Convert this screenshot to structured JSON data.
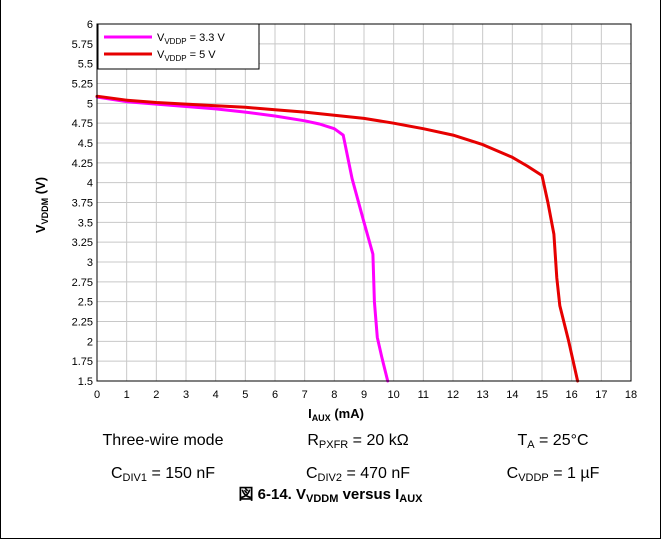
{
  "chart_data": {
    "type": "line",
    "xlabel": {
      "main": "I",
      "sub": "AUX",
      "unit": " (mA)"
    },
    "ylabel": {
      "main": "V",
      "sub": "VDDM",
      "unit": " (V)"
    },
    "xlim": [
      0,
      18
    ],
    "ylim": [
      1.5,
      6
    ],
    "x_ticks": [
      0,
      1,
      2,
      3,
      4,
      5,
      6,
      7,
      8,
      9,
      10,
      11,
      12,
      13,
      14,
      15,
      16,
      17,
      18
    ],
    "y_ticks": [
      "1.5",
      "1.75",
      "2",
      "2.25",
      "2.5",
      "2.75",
      "3",
      "3.25",
      "3.5",
      "3.75",
      "4",
      "4.25",
      "4.5",
      "4.75",
      "5",
      "5.25",
      "5.5",
      "5.75",
      "6"
    ],
    "grid": true,
    "legend_position": "top-left",
    "series": [
      {
        "name_main": "V",
        "name_sub": "VDDP",
        "name_rest": " = 3.3 V",
        "color": "#ff00ff",
        "x": [
          0,
          1,
          2,
          3,
          4,
          5,
          6,
          7,
          7.5,
          8,
          8.3,
          8.6,
          9.0,
          9.3,
          9.35,
          9.45,
          9.6,
          9.8
        ],
        "y": [
          5.08,
          5.02,
          4.99,
          4.96,
          4.93,
          4.89,
          4.84,
          4.78,
          4.74,
          4.68,
          4.6,
          4.05,
          3.5,
          3.1,
          2.5,
          2.05,
          1.8,
          1.5
        ]
      },
      {
        "name_main": "V",
        "name_sub": "VDDP",
        "name_rest": " = 5 V",
        "color": "#e60000",
        "x": [
          0,
          1,
          2,
          3,
          4,
          5,
          6,
          7,
          8,
          9,
          10,
          11,
          12,
          13,
          14,
          14.5,
          15,
          15.2,
          15.4,
          15.5,
          15.6,
          15.9,
          16.2
        ],
        "y": [
          5.09,
          5.04,
          5.01,
          4.99,
          4.97,
          4.95,
          4.92,
          4.89,
          4.85,
          4.81,
          4.75,
          4.68,
          4.6,
          4.48,
          4.32,
          4.21,
          4.09,
          3.75,
          3.35,
          2.8,
          2.45,
          2.0,
          1.5
        ]
      }
    ]
  },
  "conditions": {
    "row1": [
      {
        "main": "Three-wire mode",
        "sub": "",
        "rest": ""
      },
      {
        "main": "R",
        "sub": "PXFR",
        "rest": " = 20 kΩ"
      },
      {
        "main": "T",
        "sub": "A",
        "rest": " = 25°C"
      }
    ],
    "row2": [
      {
        "main": "C",
        "sub": "DIV1",
        "rest": " = 150 nF"
      },
      {
        "main": "C",
        "sub": "DIV2",
        "rest": " = 470 nF"
      },
      {
        "main": "C",
        "sub": "VDDP",
        "rest": " = 1 µF"
      }
    ]
  },
  "caption": {
    "prefix": "図 6-14. V",
    "sub1": "VDDM",
    "middle": " versus I",
    "sub2": "AUX"
  }
}
